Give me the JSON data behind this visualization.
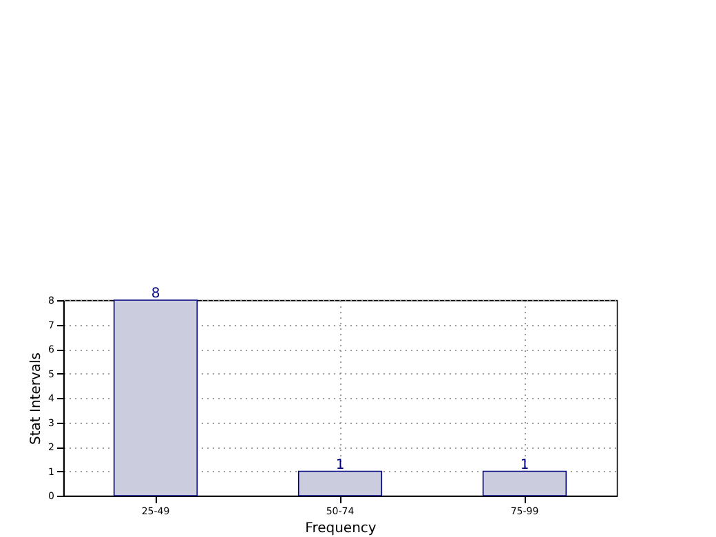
{
  "chart_data": {
    "type": "bar",
    "xlabel": "Frequency",
    "ylabel": "Stat Intervals",
    "categories": [
      "25-49",
      "50-74",
      "75-99"
    ],
    "series": [
      {
        "color": "#ccccdf",
        "values": [
          8,
          1,
          1
        ]
      }
    ],
    "ylim": [
      0,
      8
    ],
    "yticks": [
      0,
      1,
      2,
      3,
      4,
      5,
      6,
      7,
      8
    ],
    "grid": true,
    "data_labels": true
  }
}
